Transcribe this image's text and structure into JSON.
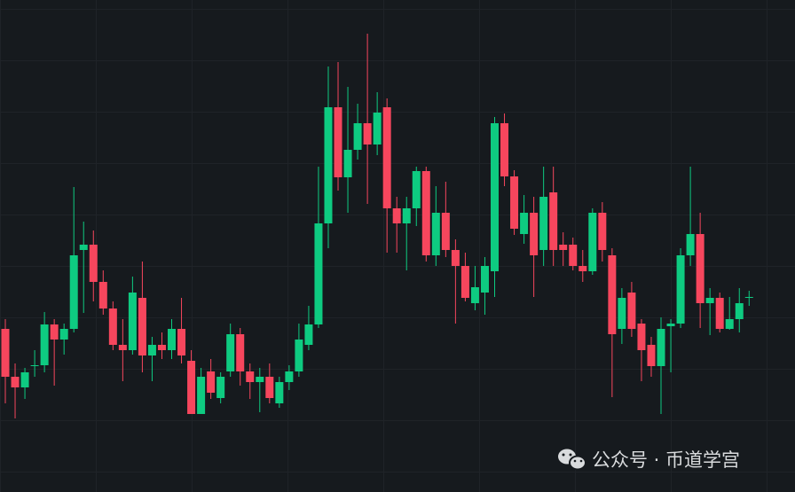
{
  "chart_data": {
    "type": "candlestick",
    "watermark": "公众号 · 币道学宫",
    "ylim": [
      0,
      555
    ],
    "grid": true,
    "up_color": "#0ecb81",
    "down_color": "#f6465d",
    "open": [
      184,
      130,
      118,
      143,
      143,
      189,
      172,
      184,
      273,
      279,
      237,
      207,
      166,
      160,
      219,
      154,
      166,
      160,
      184,
      148,
      88,
      136,
      106,
      136,
      178,
      136,
      124,
      130,
      100,
      124,
      136,
      166,
      189,
      303,
      434,
      355,
      386,
      416,
      392,
      434,
      320,
      303,
      320,
      362,
      267,
      315,
      273,
      255,
      213,
      225,
      249,
      416,
      356,
      291,
      315,
      273,
      338,
      279,
      279,
      255,
      249,
      315,
      267,
      184,
      225,
      190,
      166,
      142,
      187,
      190,
      267,
      291,
      213,
      219,
      184,
      195,
      220
    ],
    "high": [
      195,
      145,
      140,
      160,
      203,
      195,
      190,
      344,
      305,
      295,
      250,
      215,
      195,
      243,
      260,
      175,
      180,
      195,
      219,
      160,
      140,
      150,
      135,
      190,
      185,
      145,
      140,
      145,
      130,
      143,
      190,
      210,
      367,
      480,
      485,
      457,
      438,
      517,
      451,
      444,
      333,
      333,
      367,
      367,
      345,
      350,
      285,
      270,
      255,
      265,
      423,
      427,
      363,
      335,
      333,
      367,
      367,
      293,
      287,
      273,
      320,
      327,
      275,
      230,
      237,
      195,
      175,
      197,
      195,
      275,
      367,
      315,
      230,
      225,
      220,
      230,
      227
    ],
    "low": [
      100,
      83,
      105,
      130,
      135,
      120,
      155,
      180,
      202,
      215,
      200,
      160,
      125,
      155,
      135,
      125,
      150,
      150,
      145,
      88,
      88,
      105,
      100,
      130,
      120,
      105,
      90,
      100,
      95,
      115,
      130,
      160,
      185,
      275,
      340,
      315,
      375,
      325,
      380,
      270,
      270,
      250,
      300,
      260,
      255,
      265,
      190,
      215,
      205,
      200,
      220,
      345,
      290,
      280,
      220,
      255,
      255,
      255,
      250,
      237,
      245,
      260,
      107,
      167,
      175,
      125,
      130,
      88,
      135,
      185,
      255,
      185,
      177,
      180,
      183,
      180,
      210
    ],
    "close": [
      130,
      118,
      135,
      143,
      189,
      172,
      184,
      267,
      279,
      237,
      207,
      166,
      160,
      225,
      154,
      166,
      160,
      184,
      154,
      88,
      130,
      112,
      130,
      178,
      136,
      124,
      130,
      106,
      124,
      136,
      172,
      189,
      303,
      434,
      355,
      386,
      416,
      392,
      428,
      320,
      303,
      320,
      362,
      267,
      315,
      273,
      255,
      219,
      231,
      255,
      416,
      356,
      297,
      315,
      267,
      333,
      273,
      273,
      255,
      249,
      315,
      273,
      178,
      219,
      184,
      160,
      142,
      184,
      190,
      267,
      291,
      213,
      219,
      184,
      195,
      213,
      220
    ]
  }
}
